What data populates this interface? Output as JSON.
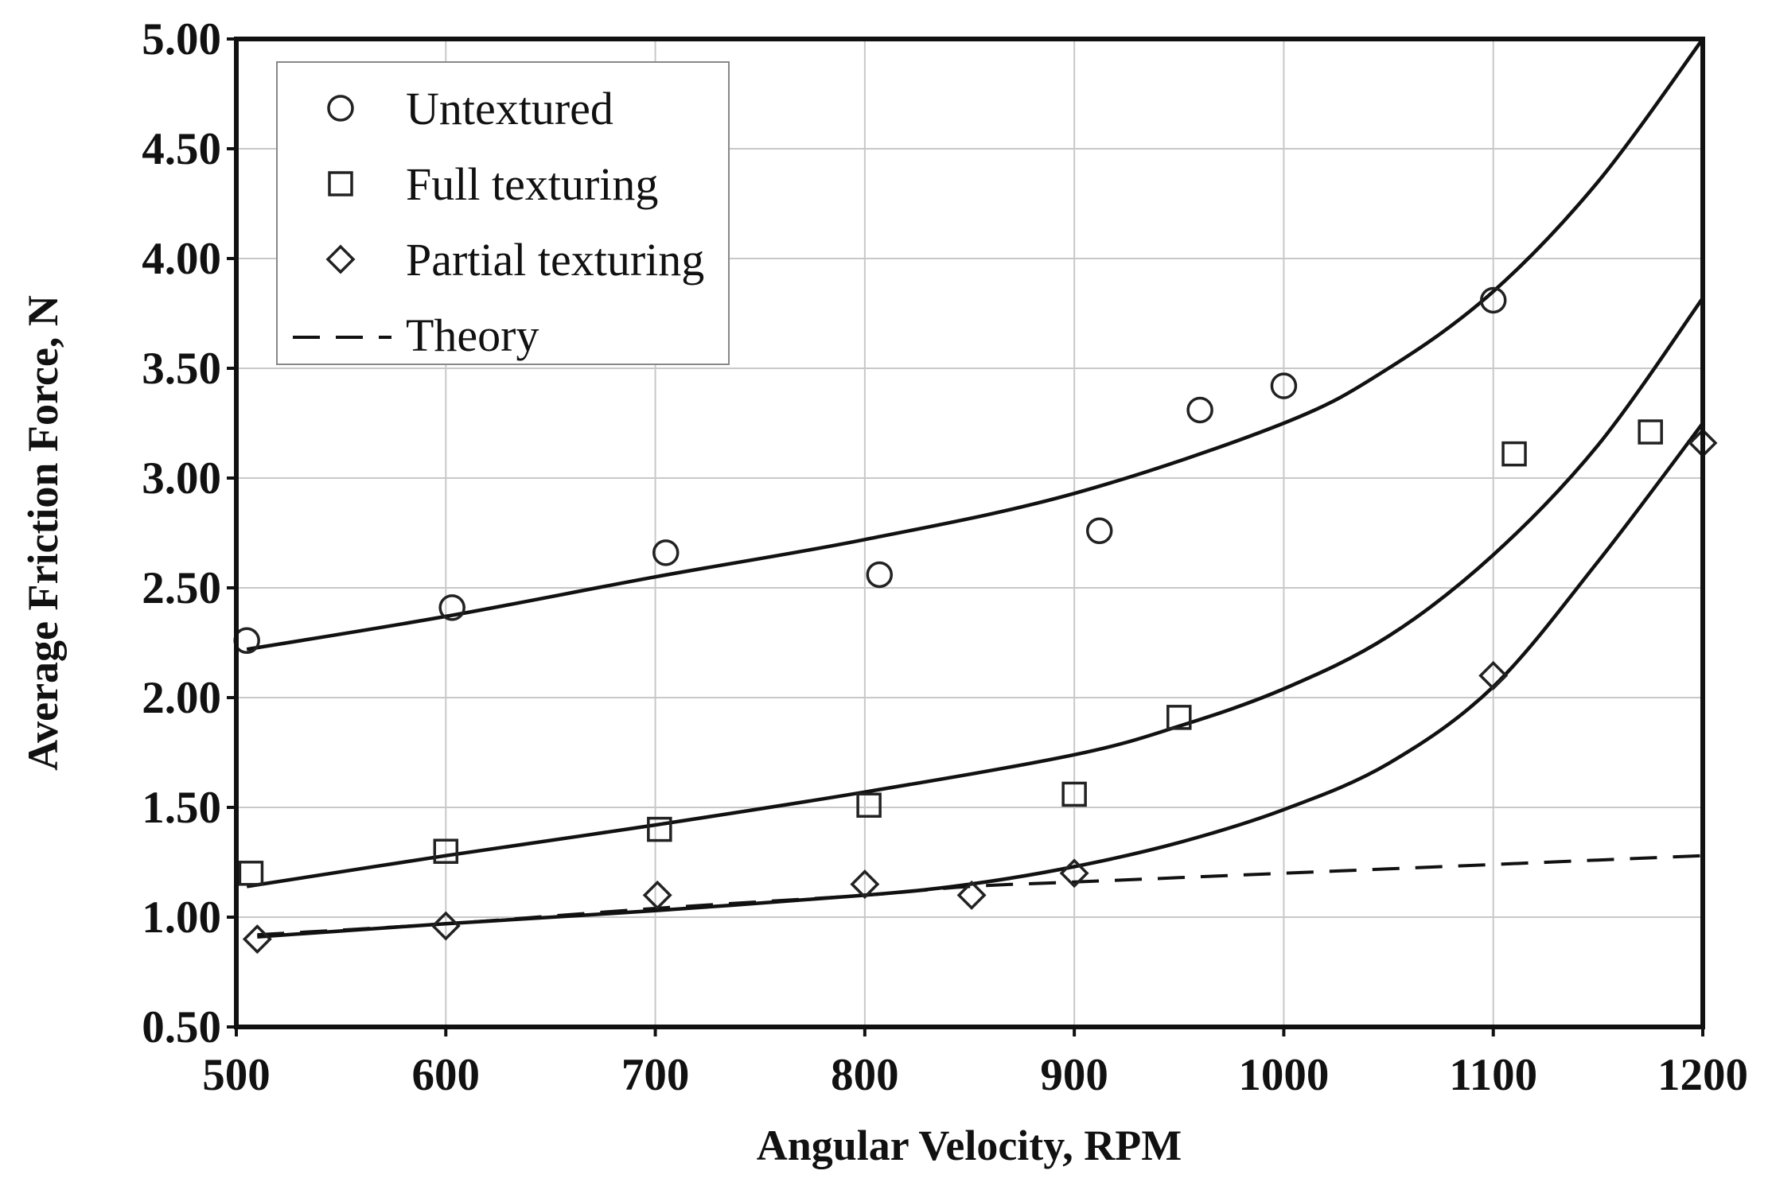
{
  "chart_data": {
    "type": "scatter",
    "xlabel": "Angular Velocity, RPM",
    "ylabel": "Average Friction Force, N",
    "xlim": [
      500,
      1200
    ],
    "ylim": [
      0.5,
      5.0
    ],
    "x_ticks": [
      500,
      600,
      700,
      800,
      900,
      1000,
      1100,
      1200
    ],
    "y_ticks": [
      0.5,
      1.0,
      1.5,
      2.0,
      2.5,
      3.0,
      3.5,
      4.0,
      4.5,
      5.0
    ],
    "x_tick_labels": [
      "500",
      "600",
      "700",
      "800",
      "900",
      "1000",
      "1100",
      "1200"
    ],
    "y_tick_labels": [
      "0.50",
      "1.00",
      "1.50",
      "2.00",
      "2.50",
      "3.00",
      "3.50",
      "4.00",
      "4.50",
      "5.00"
    ],
    "grid": true,
    "legend_position": "top-left",
    "series": [
      {
        "name": "Untextured",
        "marker": "circle",
        "points": [
          {
            "x": 505,
            "y": 2.26
          },
          {
            "x": 603,
            "y": 2.41
          },
          {
            "x": 705,
            "y": 2.66
          },
          {
            "x": 807,
            "y": 2.56
          },
          {
            "x": 912,
            "y": 2.76
          },
          {
            "x": 960,
            "y": 3.31
          },
          {
            "x": 1000,
            "y": 3.42
          },
          {
            "x": 1100,
            "y": 3.81
          }
        ],
        "fit_curve": [
          {
            "x": 505,
            "y": 2.22
          },
          {
            "x": 600,
            "y": 2.37
          },
          {
            "x": 700,
            "y": 2.55
          },
          {
            "x": 800,
            "y": 2.72
          },
          {
            "x": 900,
            "y": 2.93
          },
          {
            "x": 1000,
            "y": 3.25
          },
          {
            "x": 1050,
            "y": 3.5
          },
          {
            "x": 1100,
            "y": 3.85
          },
          {
            "x": 1150,
            "y": 4.35
          },
          {
            "x": 1200,
            "y": 5.0
          }
        ]
      },
      {
        "name": "Full texturing",
        "marker": "square",
        "points": [
          {
            "x": 507,
            "y": 1.2
          },
          {
            "x": 600,
            "y": 1.3
          },
          {
            "x": 702,
            "y": 1.4
          },
          {
            "x": 802,
            "y": 1.51
          },
          {
            "x": 900,
            "y": 1.56
          },
          {
            "x": 950,
            "y": 1.91
          },
          {
            "x": 1110,
            "y": 3.11
          },
          {
            "x": 1175,
            "y": 3.21
          }
        ],
        "fit_curve": [
          {
            "x": 505,
            "y": 1.14
          },
          {
            "x": 600,
            "y": 1.28
          },
          {
            "x": 700,
            "y": 1.42
          },
          {
            "x": 800,
            "y": 1.57
          },
          {
            "x": 900,
            "y": 1.74
          },
          {
            "x": 950,
            "y": 1.87
          },
          {
            "x": 1000,
            "y": 2.04
          },
          {
            "x": 1050,
            "y": 2.28
          },
          {
            "x": 1100,
            "y": 2.65
          },
          {
            "x": 1150,
            "y": 3.15
          },
          {
            "x": 1200,
            "y": 3.82
          }
        ]
      },
      {
        "name": "Partial texturing",
        "marker": "diamond",
        "points": [
          {
            "x": 510,
            "y": 0.9
          },
          {
            "x": 600,
            "y": 0.96
          },
          {
            "x": 701,
            "y": 1.1
          },
          {
            "x": 800,
            "y": 1.15
          },
          {
            "x": 851,
            "y": 1.1
          },
          {
            "x": 900,
            "y": 1.2
          },
          {
            "x": 1100,
            "y": 2.1
          },
          {
            "x": 1200,
            "y": 3.16
          }
        ],
        "fit_curve": [
          {
            "x": 510,
            "y": 0.91
          },
          {
            "x": 600,
            "y": 0.97
          },
          {
            "x": 700,
            "y": 1.03
          },
          {
            "x": 800,
            "y": 1.1
          },
          {
            "x": 850,
            "y": 1.15
          },
          {
            "x": 900,
            "y": 1.23
          },
          {
            "x": 950,
            "y": 1.34
          },
          {
            "x": 1000,
            "y": 1.49
          },
          {
            "x": 1050,
            "y": 1.7
          },
          {
            "x": 1100,
            "y": 2.05
          },
          {
            "x": 1150,
            "y": 2.62
          },
          {
            "x": 1200,
            "y": 3.25
          }
        ]
      },
      {
        "name": "Theory",
        "marker": "dashed-line",
        "points": [
          {
            "x": 510,
            "y": 0.92
          },
          {
            "x": 600,
            "y": 0.97
          },
          {
            "x": 700,
            "y": 1.04
          },
          {
            "x": 800,
            "y": 1.1
          },
          {
            "x": 850,
            "y": 1.14
          },
          {
            "x": 900,
            "y": 1.16
          },
          {
            "x": 950,
            "y": 1.18
          },
          {
            "x": 1000,
            "y": 1.2
          },
          {
            "x": 1050,
            "y": 1.22
          },
          {
            "x": 1100,
            "y": 1.24
          },
          {
            "x": 1150,
            "y": 1.26
          },
          {
            "x": 1200,
            "y": 1.28
          }
        ]
      }
    ],
    "legend": [
      {
        "label": "Untextured",
        "marker": "circle"
      },
      {
        "label": "Full texturing",
        "marker": "square"
      },
      {
        "label": "Partial texturing",
        "marker": "diamond"
      },
      {
        "label": "Theory",
        "marker": "dashed-line"
      }
    ]
  }
}
